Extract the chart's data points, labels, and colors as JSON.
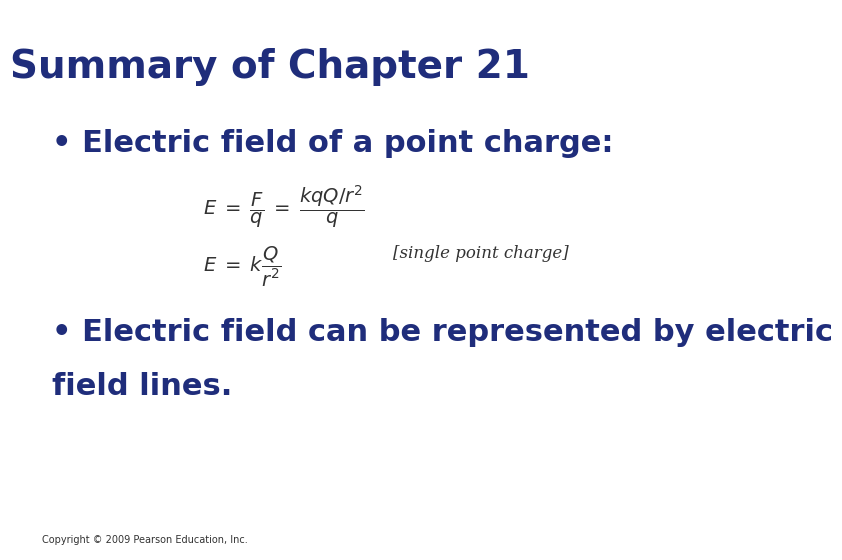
{
  "title": "Summary of Chapter 21",
  "title_color": "#1F2D7B",
  "title_fontsize": 28,
  "title_fontstyle": "bold",
  "bg_color": "#FFFFFF",
  "bullet1": "Electric field of a point charge:",
  "bullet2_line1": "Electric field can be represented by electric",
  "bullet2_line2": "field lines.",
  "bullet_color": "#1F2D7B",
  "bullet_fontsize": 22,
  "bullet_fontstyle": "bold",
  "formula_label": "[single point charge]",
  "formula_color": "#333333",
  "formula_fontsize": 13,
  "copyright": "Copyright © 2009 Pearson Education, Inc.",
  "copyright_fontsize": 7,
  "copyright_color": "#333333"
}
